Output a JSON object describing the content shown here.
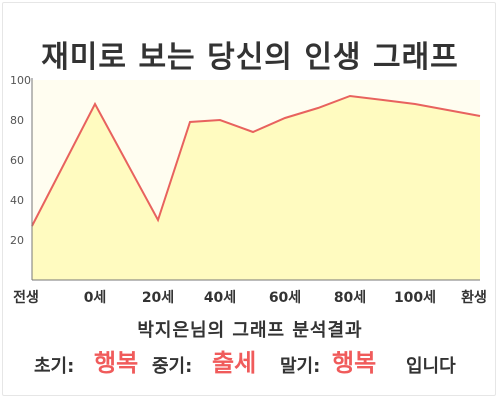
{
  "title": "재미로 보는 당신의 인생 그래프",
  "summary": {
    "heading": "박지은님의 그래프 분석결과",
    "early_label": "초기:",
    "early_value": "행복",
    "mid_label": "중기:",
    "mid_value": "출세",
    "late_label": "말기:",
    "late_value": "행복",
    "ending": "입니다"
  },
  "colors": {
    "line": "#e8625e",
    "fill": "#fffbc0",
    "plot_bg": "#fffdf0",
    "accent_text": "#f05b5b"
  },
  "chart_data": {
    "type": "area",
    "title": "재미로 보는 당신의 인생 그래프",
    "xlabel": "",
    "ylabel": "",
    "x_tick_labels": [
      "전생",
      "0세",
      "20세",
      "40세",
      "60세",
      "80세",
      "100세",
      "환생"
    ],
    "y_tick_labels": [
      "20",
      "40",
      "60",
      "80",
      "100"
    ],
    "ylim": [
      0,
      100
    ],
    "grid": false,
    "legend": "none",
    "series": [
      {
        "points": [
          {
            "x": "전생",
            "y": 27
          },
          {
            "x": "0세",
            "y": 88
          },
          {
            "x": "20세",
            "y": 30
          },
          {
            "x": "30세",
            "y": 79
          },
          {
            "x": "40세",
            "y": 80
          },
          {
            "x": "50세",
            "y": 74
          },
          {
            "x": "60세",
            "y": 81
          },
          {
            "x": "70세",
            "y": 86
          },
          {
            "x": "80세",
            "y": 92
          },
          {
            "x": "90세",
            "y": 90
          },
          {
            "x": "100세",
            "y": 88
          },
          {
            "x": "환생",
            "y": 82
          }
        ]
      }
    ]
  }
}
